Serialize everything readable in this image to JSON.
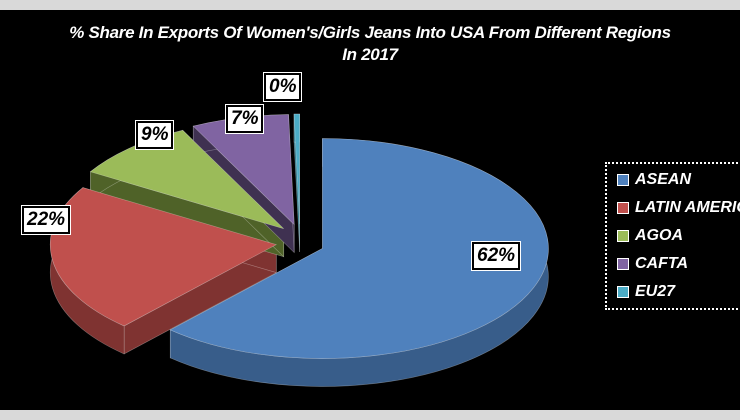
{
  "chart_data": {
    "type": "pie",
    "style": "3d-exploded",
    "title_line1": "% Share In Exports Of Women's/Girls Jeans Into USA From Different Regions",
    "title_line2": "In 2017",
    "categories": [
      "ASEAN",
      "LATIN AMERICA",
      "AGOA",
      "CAFTA",
      "EU27"
    ],
    "values": [
      62,
      22,
      9,
      7,
      0
    ],
    "data_labels": [
      "62%",
      "22%",
      "9%",
      "7%",
      "0%"
    ],
    "colors": [
      "#4F81BD",
      "#C0504D",
      "#9BBB59",
      "#8064A2",
      "#4BACC6"
    ],
    "side_colors": [
      "#385D8A",
      "#7F3331",
      "#4F6228",
      "#3F3151",
      "#2E7A8C"
    ],
    "legend_position": "right",
    "background": "#000000"
  }
}
